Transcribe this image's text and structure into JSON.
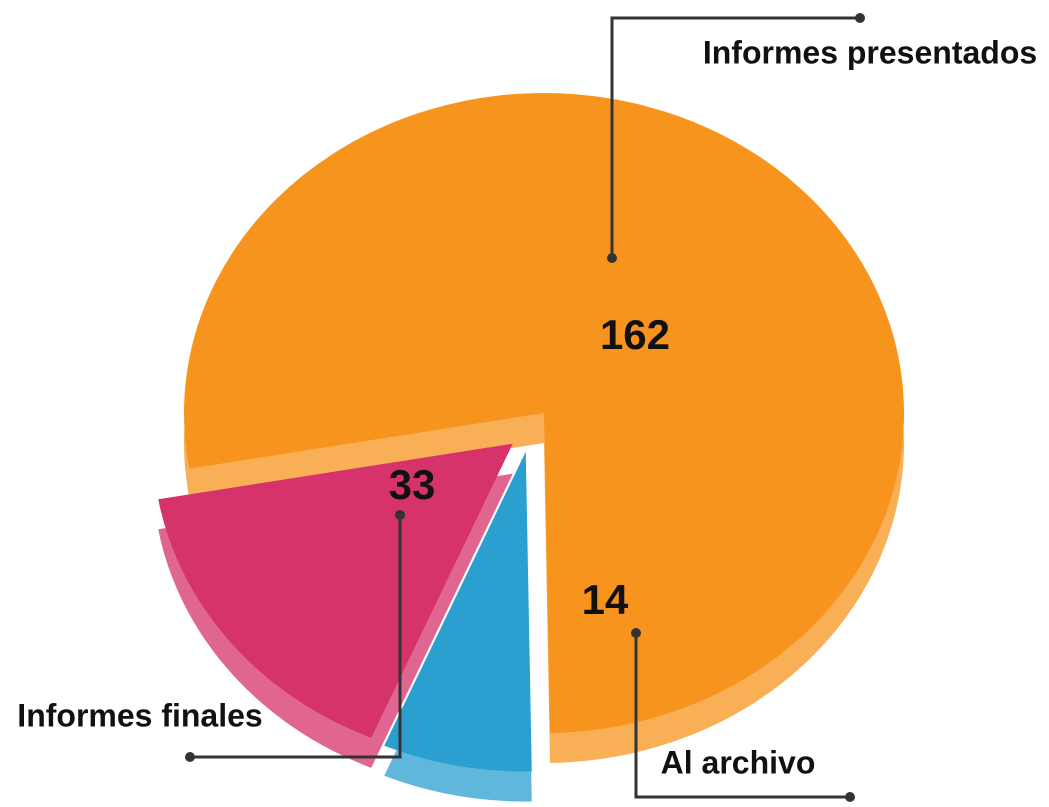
{
  "chart_data": {
    "type": "pie",
    "categories": [
      "Informes presentados",
      "Al archivo",
      "Informes finales"
    ],
    "values": [
      162,
      14,
      33
    ],
    "colors": [
      "#f7941d",
      "#2a9fd0",
      "#d6336c"
    ]
  }
}
